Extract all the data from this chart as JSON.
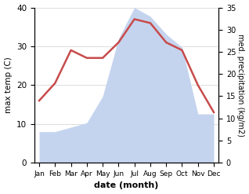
{
  "months": [
    "Jan",
    "Feb",
    "Mar",
    "Apr",
    "May",
    "Jun",
    "Jul",
    "Aug",
    "Sep",
    "Oct",
    "Nov",
    "Dec"
  ],
  "temperature": [
    16,
    20.5,
    29,
    27,
    27,
    31,
    37,
    36,
    31,
    29,
    20,
    13
  ],
  "precipitation": [
    7,
    7,
    8,
    9,
    15,
    28,
    35,
    33,
    29,
    26,
    11,
    11
  ],
  "temp_color": "#c84b4b",
  "precip_color_fill": "#c5d4ee",
  "left_ylabel": "max temp (C)",
  "right_ylabel": "med. precipitation (kg/m2)",
  "xlabel": "date (month)",
  "ylim_left": [
    0,
    40
  ],
  "ylim_right": [
    0,
    35
  ],
  "yticks_left": [
    0,
    10,
    20,
    30,
    40
  ],
  "yticks_right": [
    0,
    5,
    10,
    15,
    20,
    25,
    30,
    35
  ],
  "background_color": "#ffffff",
  "grid_color": "#d0d0d0",
  "temp_linewidth": 1.8
}
